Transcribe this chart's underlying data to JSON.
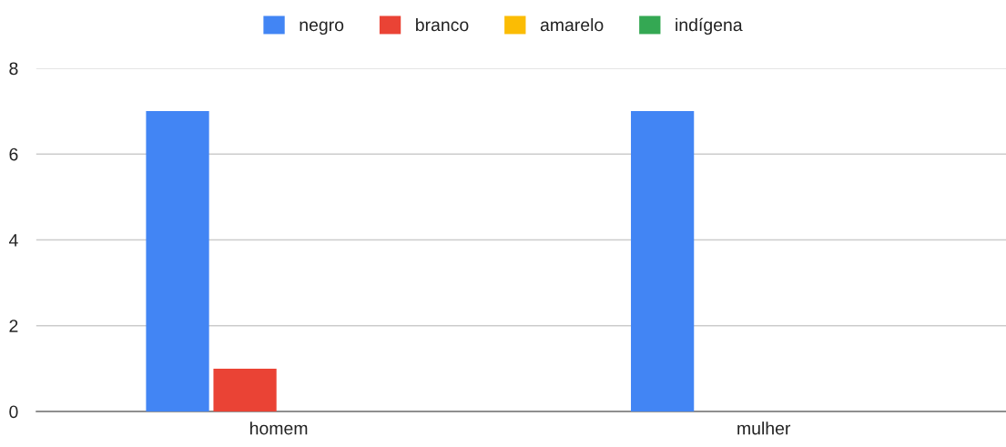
{
  "chart_data": {
    "type": "bar",
    "categories": [
      "homem",
      "mulher"
    ],
    "series": [
      {
        "name": "negro",
        "color": "#4285f4",
        "values": [
          7,
          7
        ]
      },
      {
        "name": "branco",
        "color": "#ea4335",
        "values": [
          1,
          0
        ]
      },
      {
        "name": "amarelo",
        "color": "#fbbc04",
        "values": [
          0,
          0
        ]
      },
      {
        "name": "indígena",
        "color": "#34a853",
        "values": [
          0,
          0
        ]
      }
    ],
    "ylim": [
      0,
      8
    ],
    "yticks": [
      0,
      2,
      4,
      6,
      8
    ],
    "grid": "y",
    "legend": "top"
  }
}
